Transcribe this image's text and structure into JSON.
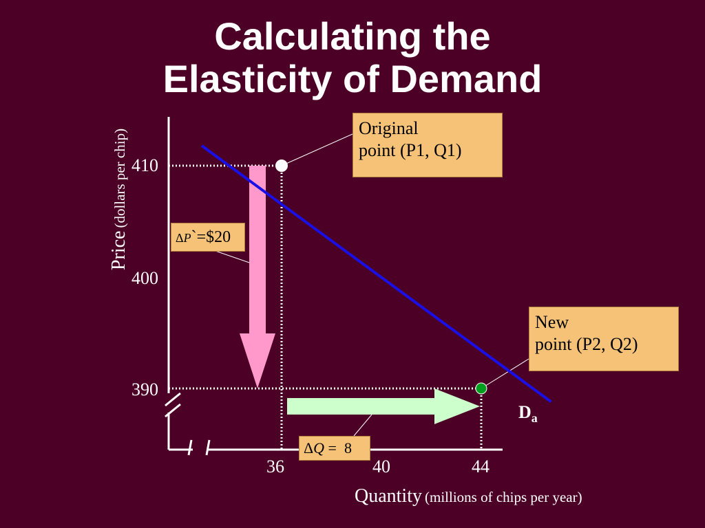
{
  "title": {
    "line1": "Calculating the",
    "line2": "Elasticity of Demand"
  },
  "chart_data": {
    "type": "line",
    "title": "Calculating the Elasticity of Demand",
    "xlabel": "Quantity",
    "xlabel_unit": "(millions of chips per year)",
    "ylabel": "Price",
    "ylabel_unit": "(dollars per chip)",
    "x_ticks": [
      "36",
      "40",
      "44"
    ],
    "y_ticks": [
      "410",
      "400",
      "390"
    ],
    "xlim": [
      31,
      47
    ],
    "ylim": [
      385,
      413
    ],
    "series": [
      {
        "name": "Da",
        "label_main": "D",
        "label_sub": "a",
        "color": "#1a10e6",
        "x": [
          32.8,
          46.8
        ],
        "y": [
          411.8,
          388.8
        ]
      }
    ],
    "points": [
      {
        "x": 36,
        "y": 410,
        "label": "Original point (P1, Q1)",
        "color": "#ffffff"
      },
      {
        "x": 44,
        "y": 390,
        "label": "New point (P2, Q2)",
        "color": "#00a01e"
      }
    ],
    "annotations": {
      "original": {
        "line1": "Original",
        "line2": "point (P1, Q1)"
      },
      "new": {
        "line1": "New",
        "line2": "point (P2, Q2)"
      },
      "delta_p": {
        "symbol": "Δ",
        "var": "P",
        "tick": "`",
        "text": "=$20",
        "color": "#ff99cc"
      },
      "delta_q": {
        "symbol": "Δ",
        "var": "Q",
        "text": " =  8",
        "color": "#ccffcc"
      }
    }
  }
}
